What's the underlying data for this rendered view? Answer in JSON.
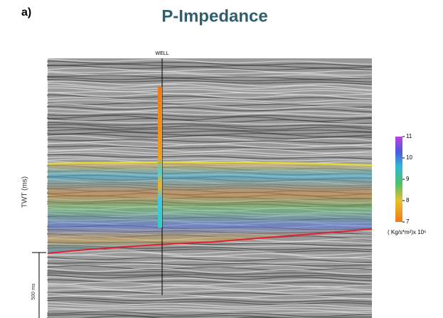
{
  "panel_label": "a)",
  "title": "P-Impedance",
  "well_label": "WELL",
  "y_axis_label": "TWT (ms)",
  "scale_bar_label": "500 ms",
  "colorbar": {
    "ticks": [
      7,
      8,
      9,
      10,
      11
    ],
    "unit": "( Kg/s*m²)x 10⁶"
  }
}
